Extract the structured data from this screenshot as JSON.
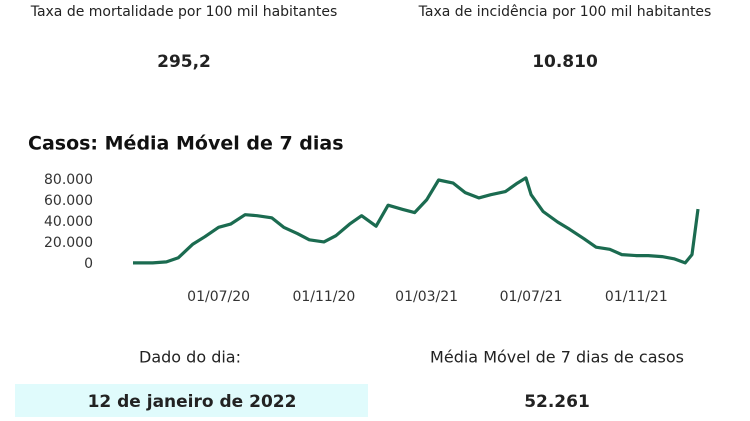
{
  "stats": [
    {
      "label": "Taxa de mortalidade por 100 mil habitantes",
      "value": "295,2"
    },
    {
      "label": "Taxa de incidência por 100 mil habitantes",
      "value": "10.810"
    }
  ],
  "footer": {
    "date_label": "Dado do dia:",
    "date": "12 de janeiro de 2022",
    "avg_label": "Média Móvel de 7 dias de casos",
    "avg_value": "52.261"
  },
  "chart_data": {
    "type": "line",
    "title": "Casos: Média Móvel de 7 dias",
    "x": [
      "2020-03-23",
      "2020-04-15",
      "2020-05-01",
      "2020-05-15",
      "2020-06-01",
      "2020-06-15",
      "2020-07-01",
      "2020-07-15",
      "2020-08-01",
      "2020-08-15",
      "2020-09-01",
      "2020-09-15",
      "2020-10-01",
      "2020-10-15",
      "2020-11-01",
      "2020-11-15",
      "2020-12-01",
      "2020-12-15",
      "2021-01-01",
      "2021-01-15",
      "2021-02-01",
      "2021-02-15",
      "2021-03-01",
      "2021-03-15",
      "2021-04-01",
      "2021-04-15",
      "2021-05-01",
      "2021-05-15",
      "2021-06-01",
      "2021-06-15",
      "2021-06-25",
      "2021-07-01",
      "2021-07-15",
      "2021-08-01",
      "2021-08-15",
      "2021-09-01",
      "2021-09-15",
      "2021-10-01",
      "2021-10-15",
      "2021-11-01",
      "2021-11-15",
      "2021-12-01",
      "2021-12-15",
      "2021-12-28",
      "2022-01-05",
      "2022-01-12"
    ],
    "series": [
      {
        "name": "Média Móvel de 7 dias",
        "color": "#1b6b50",
        "values": [
          1000,
          1000,
          2000,
          6000,
          19000,
          26000,
          35000,
          38000,
          47000,
          46000,
          44000,
          35000,
          29000,
          23000,
          21000,
          27000,
          38000,
          46000,
          36000,
          56000,
          52000,
          49000,
          61000,
          80000,
          77000,
          68000,
          63000,
          66000,
          69000,
          77000,
          82000,
          66000,
          50000,
          40000,
          33000,
          24000,
          16000,
          14000,
          9000,
          8000,
          8000,
          7000,
          5000,
          1000,
          9000,
          52261
        ]
      }
    ],
    "xlim": [
      "2020-03-23",
      "2022-01-12"
    ],
    "xticks": [
      {
        "value": "2020-07-01",
        "label": "01/07/20"
      },
      {
        "value": "2020-11-01",
        "label": "01/11/20"
      },
      {
        "value": "2021-03-01",
        "label": "01/03/21"
      },
      {
        "value": "2021-07-01",
        "label": "01/07/21"
      },
      {
        "value": "2021-11-01",
        "label": "01/11/21"
      }
    ],
    "ylim": [
      0,
      80000
    ],
    "yticks": [
      0,
      {
        "value": 20000,
        "label": "20.000"
      },
      {
        "value": 40000,
        "label": "40.000"
      },
      {
        "value": 60000,
        "label": "60.000"
      },
      {
        "value": 80000,
        "label": "80.000"
      }
    ],
    "grid": false
  }
}
